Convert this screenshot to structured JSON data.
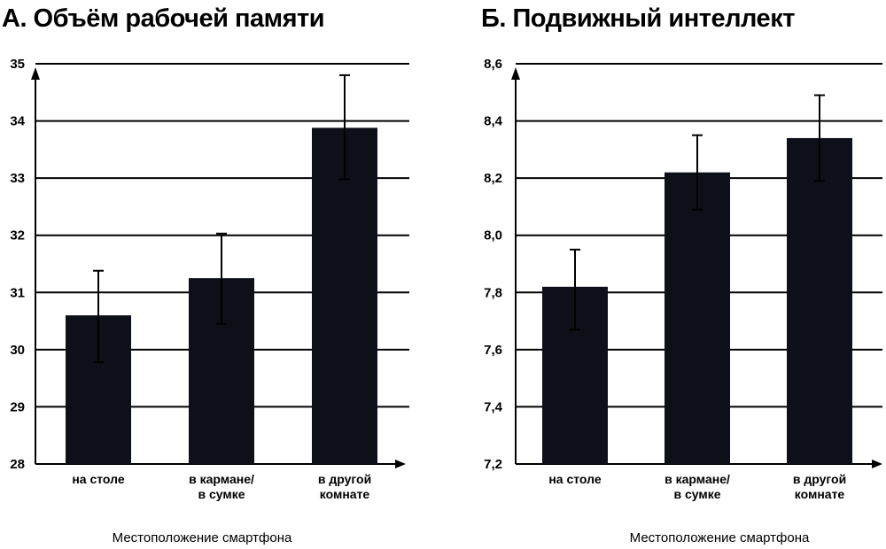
{
  "chart_data": [
    {
      "type": "bar",
      "title": "А. Объём рабочей памяти",
      "categories": [
        [
          "на столе"
        ],
        [
          "в кармане/",
          "в сумке"
        ],
        [
          "в другой",
          "комнате"
        ]
      ],
      "values": [
        30.6,
        31.25,
        33.88
      ],
      "error_low": [
        29.78,
        30.45,
        32.98
      ],
      "error_high": [
        31.38,
        32.03,
        34.8
      ],
      "xlabel": "Местоположение смартфона",
      "ylabel": "",
      "ylim": [
        28,
        35
      ],
      "yticks": [
        "28",
        "29",
        "30",
        "31",
        "32",
        "33",
        "34",
        "35"
      ],
      "grid": true,
      "bar_color": "#0d1019"
    },
    {
      "type": "bar",
      "title": "Б. Подвижный интеллект",
      "categories": [
        [
          "на столе"
        ],
        [
          "в кармане/",
          "в сумке"
        ],
        [
          "в другой",
          "комнате"
        ]
      ],
      "values": [
        7.82,
        8.22,
        8.34
      ],
      "error_low": [
        7.67,
        8.09,
        8.19
      ],
      "error_high": [
        7.95,
        8.35,
        8.49
      ],
      "xlabel": "Местоположение смартфона",
      "ylabel": "",
      "ylim": [
        7.2,
        8.6
      ],
      "yticks": [
        "7,2",
        "7,4",
        "7,6",
        "7,8",
        "8,0",
        "8,2",
        "8,4",
        "8,6"
      ],
      "grid": true,
      "bar_color": "#0d1019"
    }
  ]
}
